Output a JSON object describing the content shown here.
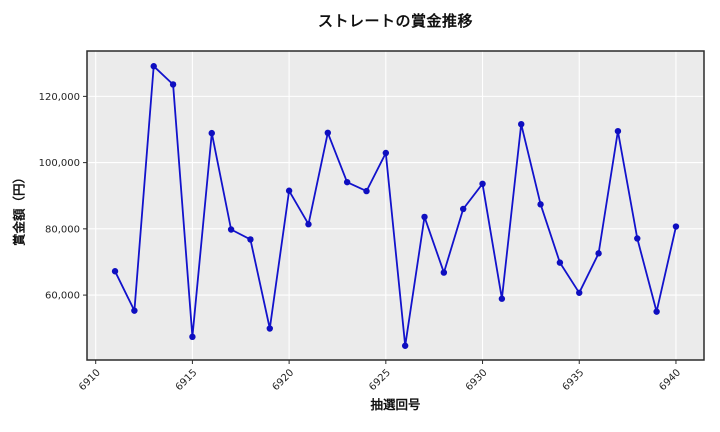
{
  "chart_data": {
    "type": "line",
    "title": "ストレートの賞金推移",
    "xlabel": "抽選回号",
    "ylabel": "賞金額（円）",
    "x": [
      6911,
      6912,
      6913,
      6914,
      6915,
      6916,
      6917,
      6918,
      6919,
      6920,
      6921,
      6922,
      6923,
      6924,
      6925,
      6926,
      6927,
      6928,
      6929,
      6930,
      6931,
      6932,
      6933,
      6934,
      6935,
      6936,
      6937,
      6938,
      6939,
      6940
    ],
    "values": [
      67200,
      55300,
      129100,
      123600,
      47400,
      108900,
      79800,
      76800,
      49900,
      91500,
      81400,
      109000,
      94100,
      91400,
      102900,
      44700,
      83600,
      66800,
      86000,
      93600,
      58900,
      111600,
      87400,
      69800,
      60700,
      72600,
      109500,
      77100,
      55000,
      80700
    ],
    "xticks": [
      6910,
      6915,
      6920,
      6925,
      6930,
      6935,
      6940
    ],
    "yticks": [
      60000,
      80000,
      100000,
      120000
    ],
    "xlim": [
      6909.55,
      6941.45
    ],
    "ylim": [
      40400,
      133700
    ],
    "grid": true,
    "legend_position": "none",
    "colors": {
      "line": "#1212CC",
      "marker": "#0E0EC0",
      "plot_bg": "#EBEBEB",
      "grid": "#FFFFFF",
      "spine": "#2B2B2B",
      "tick_text": "#262626"
    }
  }
}
